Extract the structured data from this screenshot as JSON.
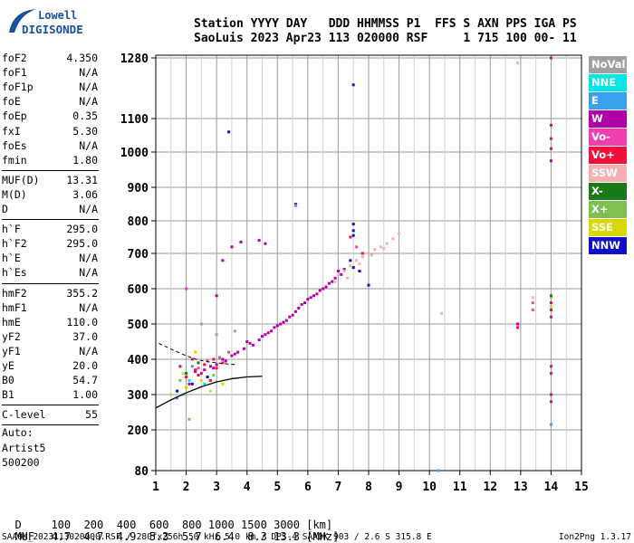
{
  "logo": {
    "line1": "Lowell",
    "line2": "DIGISONDE",
    "brand_color": "#1a4fa0"
  },
  "header": {
    "labels": "Station YYYY DAY   DDD HHMMSS P1  FFS S AXN PPS IGA PS",
    "values": "SaoLuis 2023 Apr23 113 020000 RSF     1 715 100 00- 11"
  },
  "params": [
    {
      "name": "foF2",
      "value": "4.350"
    },
    {
      "name": "foF1",
      "value": "N/A"
    },
    {
      "name": "foF1p",
      "value": "N/A"
    },
    {
      "name": "foE",
      "value": "N/A"
    },
    {
      "name": "foEp",
      "value": "0.35"
    },
    {
      "name": "fxI",
      "value": "5.30"
    },
    {
      "name": "foEs",
      "value": "N/A"
    },
    {
      "name": "fmin",
      "value": "1.80"
    },
    {
      "name": "MUF(D)",
      "value": "13.31"
    },
    {
      "name": "M(D)",
      "value": "3.06"
    },
    {
      "name": "D",
      "value": "N/A"
    },
    {
      "name": "h`F",
      "value": "295.0"
    },
    {
      "name": "h`F2",
      "value": "295.0"
    },
    {
      "name": "h`E",
      "value": "N/A"
    },
    {
      "name": "h`Es",
      "value": "N/A"
    },
    {
      "name": "hmF2",
      "value": "355.2"
    },
    {
      "name": "hmF1",
      "value": "N/A"
    },
    {
      "name": "hmE",
      "value": "110.0"
    },
    {
      "name": "yF2",
      "value": "37.0"
    },
    {
      "name": "yF1",
      "value": "N/A"
    },
    {
      "name": "yE",
      "value": "20.0"
    },
    {
      "name": "B0",
      "value": "54.7"
    },
    {
      "name": "B1",
      "value": "1.00"
    },
    {
      "name": "C-level",
      "value": "55"
    },
    {
      "name": "Auto:",
      "value": ""
    },
    {
      "name": "Artist5",
      "value": ""
    },
    {
      "name": "500200",
      "value": ""
    }
  ],
  "legend": [
    {
      "label": "NoVal",
      "color": "#a0a0a0"
    },
    {
      "label": "NNE",
      "color": "#00e6e6"
    },
    {
      "label": "E",
      "color": "#3aa0f0"
    },
    {
      "label": "W",
      "color": "#b000a8"
    },
    {
      "label": "Vo-",
      "color": "#f040b0"
    },
    {
      "label": "Vo+",
      "color": "#f0103a"
    },
    {
      "label": "SSW",
      "color": "#f4b0b0"
    },
    {
      "label": "X-",
      "color": "#1a7a1a"
    },
    {
      "label": "X+",
      "color": "#7ec050"
    },
    {
      "label": "SSE",
      "color": "#d8d800"
    },
    {
      "label": "NNW",
      "color": "#1010c8"
    }
  ],
  "muf_table": {
    "d_label": "D",
    "d_values": "100  200  400  600  800 1000 1500 3000 [km]",
    "muf_label": "MUF",
    "muf_values": "4.7  4.7  4.9  5.3  5.7  6.4  8.3 13.3 [MHz]"
  },
  "footer": {
    "left": "SAA0K_2023113020000.RSF / 280fx256h 50 kHz 5.0 km / DPS-4 SAA0K 903 / 2.6 S 315.8 E",
    "right": "Ion2Png 1.3.17"
  },
  "chart_data": {
    "type": "scatter",
    "title": "",
    "xlabel": "",
    "ylabel": "",
    "xlim": [
      1,
      15
    ],
    "ylim": [
      80,
      1290
    ],
    "xticks": [
      1,
      2,
      3,
      4,
      5,
      6,
      7,
      8,
      9,
      10,
      11,
      12,
      13,
      14,
      15
    ],
    "yticks": [
      80,
      200,
      300,
      400,
      500,
      600,
      700,
      800,
      900,
      1000,
      1100,
      1280
    ],
    "grid": true,
    "legend_placement": "right",
    "trace_curve": [
      [
        1.0,
        262
      ],
      [
        1.5,
        285
      ],
      [
        2.0,
        305
      ],
      [
        2.5,
        322
      ],
      [
        3.0,
        336
      ],
      [
        3.5,
        345
      ],
      [
        4.0,
        350
      ],
      [
        4.5,
        352
      ]
    ],
    "dashed_curve": [
      [
        1.1,
        445
      ],
      [
        1.6,
        425
      ],
      [
        2.0,
        410
      ],
      [
        2.4,
        398
      ],
      [
        2.8,
        392
      ],
      [
        3.2,
        388
      ],
      [
        3.6,
        385
      ]
    ],
    "series": [
      {
        "name": "W",
        "color": "#b000a8",
        "points": [
          [
            2.1,
            330
          ],
          [
            2.4,
            355
          ],
          [
            2.8,
            380
          ],
          [
            3.2,
            400
          ],
          [
            3.5,
            410
          ],
          [
            3.9,
            430
          ],
          [
            4.2,
            440
          ],
          [
            4.5,
            465
          ],
          [
            4.8,
            480
          ],
          [
            5.1,
            500
          ],
          [
            5.4,
            520
          ],
          [
            5.7,
            545
          ],
          [
            6.0,
            570
          ],
          [
            6.3,
            585
          ],
          [
            6.6,
            605
          ],
          [
            6.9,
            630
          ],
          [
            2.6,
            370
          ],
          [
            3.0,
            385
          ],
          [
            3.7,
            420
          ],
          [
            4.0,
            450
          ],
          [
            4.4,
            455
          ],
          [
            4.7,
            475
          ],
          [
            5.0,
            495
          ],
          [
            5.3,
            510
          ],
          [
            5.6,
            535
          ],
          [
            5.9,
            560
          ],
          [
            6.2,
            580
          ],
          [
            6.5,
            600
          ],
          [
            6.8,
            620
          ],
          [
            7.1,
            640
          ],
          [
            3.3,
            395
          ],
          [
            4.1,
            445
          ],
          [
            5.5,
            525
          ],
          [
            6.1,
            575
          ],
          [
            6.7,
            615
          ],
          [
            7.2,
            655
          ],
          [
            2.9,
            375
          ],
          [
            4.6,
            470
          ],
          [
            5.8,
            555
          ],
          [
            3.0,
            580
          ],
          [
            3.5,
            720
          ],
          [
            3.8,
            735
          ],
          [
            4.4,
            740
          ],
          [
            4.6,
            730
          ],
          [
            3.2,
            680
          ],
          [
            2.3,
            365
          ],
          [
            3.6,
            415
          ],
          [
            4.9,
            490
          ],
          [
            5.2,
            505
          ],
          [
            6.4,
            595
          ],
          [
            7.0,
            650
          ],
          [
            14.0,
            975
          ],
          [
            12.9,
            500
          ],
          [
            5.6,
            850
          ]
        ]
      },
      {
        "name": "SSW",
        "color": "#f4b0b0",
        "points": [
          [
            7.0,
            640
          ],
          [
            7.2,
            650
          ],
          [
            7.4,
            665
          ],
          [
            7.6,
            680
          ],
          [
            7.8,
            690
          ],
          [
            8.0,
            700
          ],
          [
            8.2,
            712
          ],
          [
            8.4,
            720
          ],
          [
            8.6,
            730
          ],
          [
            8.8,
            745
          ],
          [
            9.0,
            760
          ],
          [
            7.3,
            630
          ],
          [
            7.7,
            670
          ],
          [
            8.1,
            695
          ],
          [
            8.5,
            715
          ],
          [
            6.9,
            620
          ],
          [
            12.9,
            1265
          ],
          [
            10.4,
            530
          ],
          [
            13.4,
            575
          ]
        ]
      },
      {
        "name": "Vo+",
        "color": "#f0103a",
        "points": [
          [
            2.0,
            350
          ],
          [
            2.3,
            370
          ],
          [
            2.6,
            385
          ],
          [
            2.9,
            400
          ],
          [
            3.2,
            390
          ],
          [
            2.5,
            360
          ],
          [
            2.8,
            340
          ],
          [
            1.8,
            380
          ],
          [
            2.2,
            400
          ],
          [
            3.0,
            375
          ],
          [
            14.0,
            1280
          ],
          [
            14.0,
            1080
          ],
          [
            14.0,
            1040
          ],
          [
            14.0,
            1010
          ],
          [
            14.0,
            560
          ],
          [
            14.0,
            540
          ],
          [
            14.0,
            520
          ],
          [
            14.0,
            380
          ],
          [
            14.0,
            360
          ],
          [
            14.0,
            300
          ],
          [
            14.0,
            280
          ],
          [
            12.9,
            490
          ],
          [
            7.4,
            750
          ],
          [
            7.8,
            700
          ]
        ]
      },
      {
        "name": "Vo-",
        "color": "#f040b0",
        "points": [
          [
            2.4,
            375
          ],
          [
            2.7,
            395
          ],
          [
            3.1,
            405
          ],
          [
            3.4,
            420
          ],
          [
            13.4,
            560
          ],
          [
            13.4,
            540
          ],
          [
            2.0,
            600
          ],
          [
            7.6,
            720
          ]
        ]
      },
      {
        "name": "NNW",
        "color": "#1010c8",
        "points": [
          [
            7.5,
            1200
          ],
          [
            3.4,
            1060
          ],
          [
            7.5,
            790
          ],
          [
            7.5,
            770
          ],
          [
            7.5,
            755
          ],
          [
            7.7,
            650
          ],
          [
            8.0,
            610
          ],
          [
            7.4,
            680
          ],
          [
            2.2,
            330
          ],
          [
            2.7,
            350
          ],
          [
            1.7,
            310
          ],
          [
            7.5,
            660
          ]
        ]
      },
      {
        "name": "SSE",
        "color": "#d8d800",
        "points": [
          [
            2.0,
            320
          ],
          [
            2.5,
            340
          ],
          [
            1.9,
            360
          ],
          [
            3.2,
            330
          ],
          [
            1.5,
            300
          ],
          [
            2.8,
            310
          ],
          [
            14.0,
            575
          ],
          [
            14.0,
            550
          ],
          [
            2.3,
            420
          ]
        ]
      },
      {
        "name": "E",
        "color": "#3aa0f0",
        "points": [
          [
            5.6,
            845
          ],
          [
            10.3,
            80
          ],
          [
            14.0,
            215
          ],
          [
            1.7,
            290
          ],
          [
            2.2,
            380
          ]
        ]
      },
      {
        "name": "NNE",
        "color": "#00e6e6",
        "points": [
          [
            2.1,
            340
          ],
          [
            1.9,
            300
          ],
          [
            2.6,
            330
          ]
        ]
      },
      {
        "name": "X-",
        "color": "#1a7a1a",
        "points": [
          [
            2.0,
            360
          ],
          [
            14.0,
            580
          ],
          [
            2.4,
            390
          ]
        ]
      },
      {
        "name": "X+",
        "color": "#7ec050",
        "points": [
          [
            1.8,
            340
          ],
          [
            2.9,
            355
          ],
          [
            2.1,
            230
          ]
        ]
      },
      {
        "name": "NoVal",
        "color": "#a0a0a0",
        "points": [
          [
            2.5,
            500
          ],
          [
            3.0,
            470
          ],
          [
            3.6,
            480
          ]
        ]
      }
    ]
  }
}
